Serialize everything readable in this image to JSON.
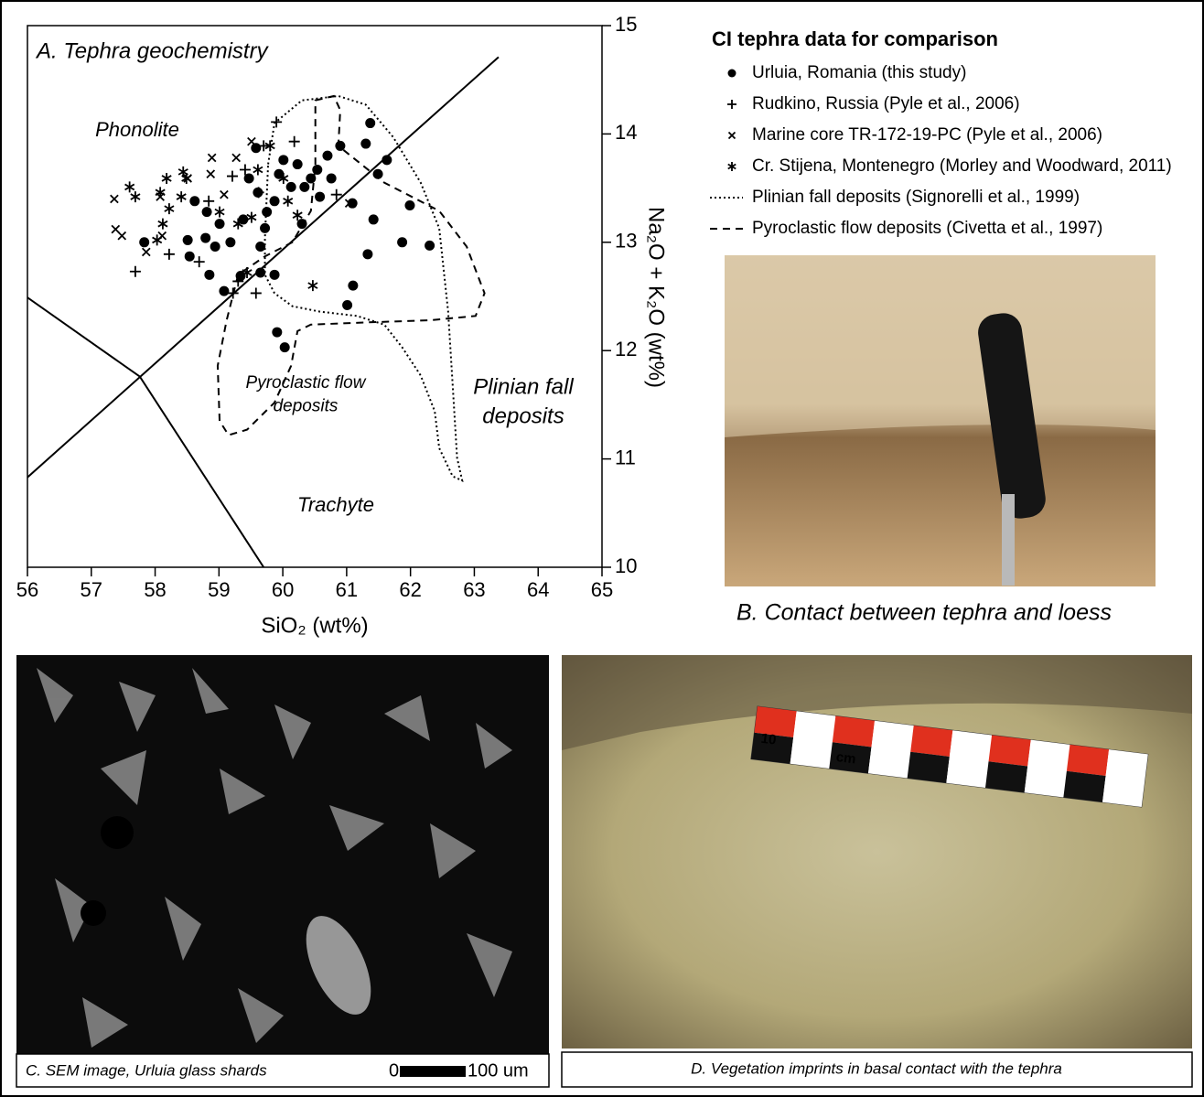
{
  "chart_data": {
    "type": "scatter",
    "title": "A. Tephra geochemistry",
    "x_label": "SiO₂ (wt%)",
    "y_label": "Na₂O + K₂O (wt%)",
    "xlim": [
      56,
      65
    ],
    "xticks": [
      56,
      57,
      58,
      59,
      60,
      61,
      62,
      63,
      64,
      65
    ],
    "ylim": [
      10,
      15
    ],
    "yticks": [
      10,
      11,
      12,
      13,
      14,
      15
    ],
    "legend_title": "CI tephra data for comparison",
    "annotations": [
      {
        "lines": [
          "Phonolite"
        ]
      },
      {
        "lines": [
          "Trachyte"
        ]
      },
      {
        "lines": [
          "Pyroclastic flow",
          "deposits"
        ]
      },
      {
        "lines": [
          "Plinian fall",
          "deposits"
        ]
      }
    ],
    "series": [
      {
        "name": "Urluia, Romania (this study)",
        "marker": "circle",
        "color": "#000000",
        "x": [
          57.83,
          58.51,
          58.54,
          58.62,
          58.81,
          58.79,
          58.94,
          58.85,
          59.08,
          59.01,
          59.18,
          59.38,
          59.47,
          59.58,
          59.61,
          59.65,
          59.72,
          59.75,
          59.87,
          59.94,
          60.01,
          60.13,
          60.23,
          60.3,
          60.34,
          60.44,
          60.54,
          60.58,
          60.7,
          60.76,
          60.9,
          59.65,
          59.87,
          59.34,
          61.09,
          61.3,
          61.37,
          61.49,
          61.63,
          61.42,
          61.99,
          61.87,
          62.3,
          61.33,
          61.1,
          61.01,
          59.91,
          60.03
        ],
        "y": [
          13.0,
          13.02,
          12.87,
          13.38,
          13.28,
          13.04,
          12.96,
          12.7,
          12.55,
          13.17,
          13.0,
          13.21,
          13.59,
          13.87,
          13.46,
          12.96,
          13.13,
          13.28,
          13.38,
          13.63,
          13.76,
          13.51,
          13.72,
          13.17,
          13.51,
          13.59,
          13.67,
          13.42,
          13.8,
          13.59,
          13.89,
          12.72,
          12.7,
          12.69,
          13.36,
          13.91,
          14.1,
          13.63,
          13.76,
          13.21,
          13.34,
          13.0,
          12.97,
          12.89,
          12.6,
          12.42,
          12.17,
          12.03
        ]
      },
      {
        "name": "Rudkino, Russia (Pyle et al., 2006)",
        "marker": "plus",
        "color": "#000000",
        "x": [
          57.69,
          58.22,
          58.69,
          58.84,
          59.21,
          59.41,
          59.7,
          59.9,
          60.18,
          59.22,
          59.58,
          59.3,
          60.84,
          59.62
        ],
        "y": [
          12.73,
          12.89,
          12.82,
          13.38,
          13.61,
          13.67,
          13.89,
          14.11,
          13.93,
          12.53,
          12.53,
          12.64,
          13.44,
          13.46
        ]
      },
      {
        "name": "Marine core TR-172-19-PC (Pyle et al., 2006)",
        "marker": "x",
        "color": "#000000",
        "x": [
          57.38,
          57.48,
          57.36,
          57.86,
          58.11,
          58.08,
          58.51,
          58.89,
          58.87,
          59.27,
          59.51,
          59.08,
          61.04
        ],
        "y": [
          13.12,
          13.06,
          13.4,
          12.91,
          13.06,
          13.42,
          13.59,
          13.78,
          13.63,
          13.78,
          13.93,
          13.44,
          13.36
        ]
      },
      {
        "name": "Cr. Stijena, Montenegro (Morley and Woodward, 2011)",
        "marker": "asterisk",
        "color": "#000000",
        "x": [
          57.6,
          57.69,
          58.08,
          58.18,
          58.44,
          58.49,
          58.22,
          58.12,
          58.03,
          58.41,
          59.01,
          59.3,
          59.51,
          59.61,
          59.8,
          60.08,
          60.23,
          60.47,
          59.44,
          60.01
        ],
        "y": [
          13.51,
          13.42,
          13.46,
          13.59,
          13.65,
          13.59,
          13.31,
          13.17,
          13.02,
          13.42,
          13.28,
          13.17,
          13.23,
          13.67,
          13.89,
          13.38,
          13.25,
          12.6,
          12.72,
          13.59
        ]
      }
    ],
    "outlines": [
      {
        "name": "Plinian fall deposits (Signorelli et al., 1999)",
        "style": "dotted",
        "x": [
          59.77,
          59.87,
          60.3,
          60.87,
          61.3,
          61.73,
          62.16,
          62.45,
          62.59,
          62.66,
          62.73,
          62.81,
          62.66,
          62.45,
          62.38,
          62.16,
          61.87,
          61.59,
          61.16,
          60.58,
          60.15,
          59.87,
          59.72,
          59.72
        ],
        "y": [
          13.72,
          14.1,
          14.31,
          14.35,
          14.27,
          13.97,
          13.55,
          13.13,
          12.36,
          11.69,
          11.01,
          10.8,
          10.84,
          11.1,
          11.44,
          11.77,
          12.03,
          12.24,
          12.32,
          12.36,
          12.41,
          12.53,
          12.7,
          13.04
        ]
      },
      {
        "name": "Pyroclastic flow deposits (Civetta et al., 1997)",
        "style": "dashed",
        "x": [
          60.51,
          60.8,
          60.9,
          60.87,
          61.59,
          62.45,
          62.88,
          63.16,
          63.02,
          62.3,
          61.3,
          60.44,
          60.23,
          60.13,
          59.87,
          59.44,
          59.15,
          59.01,
          58.98,
          59.12,
          59.3,
          59.72,
          60.15,
          60.44,
          60.51
        ],
        "y": [
          14.31,
          14.35,
          14.22,
          13.89,
          13.55,
          13.29,
          12.96,
          12.53,
          12.32,
          12.28,
          12.26,
          12.24,
          12.18,
          11.86,
          11.52,
          11.27,
          11.22,
          11.35,
          11.86,
          12.28,
          12.7,
          12.87,
          13.0,
          13.29,
          13.72
        ]
      }
    ],
    "boundaries": [
      {
        "x": [
          56,
          63.38
        ],
        "y": [
          10.83,
          14.71
        ]
      },
      {
        "x": [
          56,
          57.76,
          59.7
        ],
        "y": [
          12.49,
          11.76,
          10.0
        ]
      }
    ]
  },
  "photos": {
    "b_caption": "B. Contact between tephra and loess",
    "c_caption": "C. SEM image, Urluia glass shards",
    "c_scale_start": "0",
    "c_scale_end": "100 um",
    "d_caption": "D. Vegetation imprints in basal contact with the tephra",
    "d_ruler_number": "10",
    "d_ruler_unit": "cm"
  }
}
